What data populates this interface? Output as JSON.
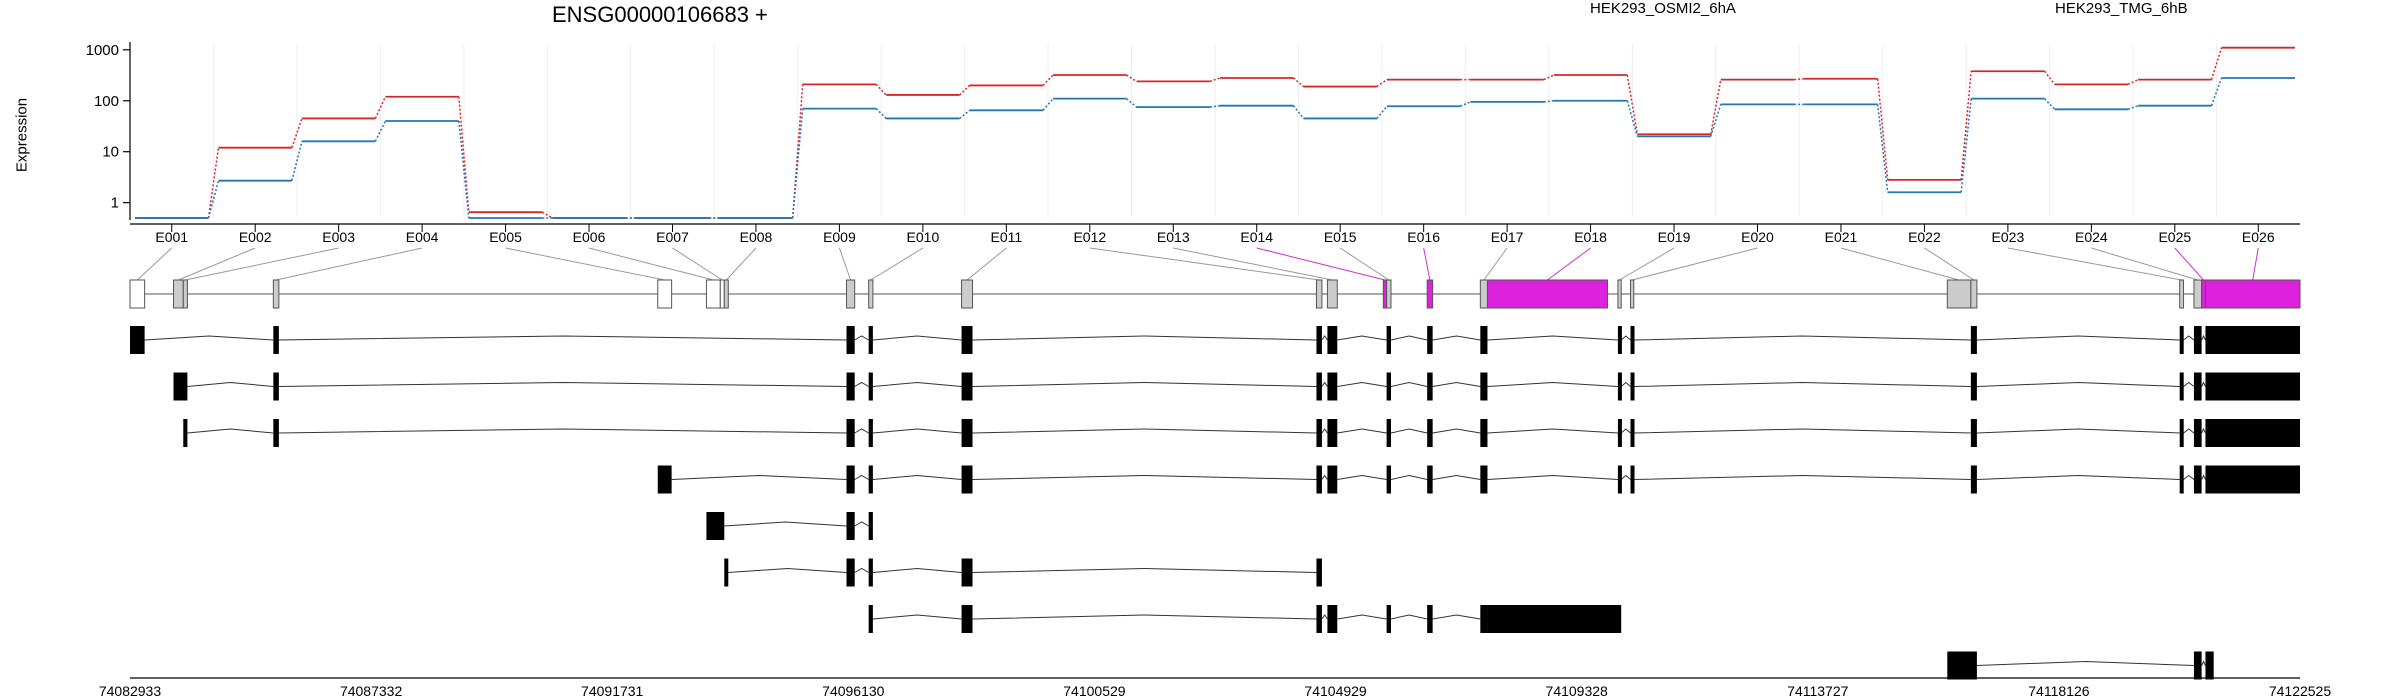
{
  "chart_data": {
    "type": "line",
    "title": "ENSG00000106683 +",
    "ylabel": "Expression",
    "yscale": "log",
    "ylim": [
      0.5,
      1300
    ],
    "yticks": [
      "1",
      "10",
      "100",
      "1000"
    ],
    "ytick_values": [
      1,
      10,
      100,
      1000
    ],
    "legend_placement": "top",
    "series": [
      {
        "name": "HEK293_OSMI2_6hA",
        "color": "#d62728",
        "values": [
          0.5,
          12,
          45,
          120,
          0.65,
          0.5,
          0.5,
          0.5,
          210,
          130,
          200,
          320,
          240,
          280,
          190,
          260,
          260,
          320,
          22,
          260,
          270,
          2.8,
          380,
          210,
          260,
          1100
        ]
      },
      {
        "name": "HEK293_TMG_6hB",
        "color": "#1f77b4",
        "values": [
          0.5,
          2.7,
          16,
          40,
          0.5,
          0.5,
          0.5,
          0.5,
          70,
          45,
          65,
          110,
          75,
          80,
          45,
          78,
          95,
          100,
          20,
          85,
          85,
          1.6,
          110,
          68,
          80,
          280
        ]
      }
    ],
    "exons": [
      {
        "label": "E001",
        "start": 74082933,
        "end": 74083200,
        "color": "#ffffff"
      },
      {
        "label": "E002",
        "start": 74083727,
        "end": 74083905,
        "color": "#cccccc"
      },
      {
        "label": "E003",
        "start": 74083905,
        "end": 74083980,
        "color": "#cccccc"
      },
      {
        "label": "E004",
        "start": 74085548,
        "end": 74085649,
        "color": "#cccccc"
      },
      {
        "label": "E005",
        "start": 74092562,
        "end": 74092815,
        "color": "#ffffff"
      },
      {
        "label": "E006",
        "start": 74093450,
        "end": 74093703,
        "color": "#ffffff"
      },
      {
        "label": "E007",
        "start": 74093703,
        "end": 74093776,
        "color": "#ffffff"
      },
      {
        "label": "E008",
        "start": 74093776,
        "end": 74093849,
        "color": "#cccccc"
      },
      {
        "label": "E009",
        "start": 74096006,
        "end": 74096155,
        "color": "#cccccc"
      },
      {
        "label": "E010",
        "start": 74096410,
        "end": 74096487,
        "color": "#cccccc"
      },
      {
        "label": "E011",
        "start": 74098105,
        "end": 74098305,
        "color": "#cccccc"
      },
      {
        "label": "E012",
        "start": 74104580,
        "end": 74104680,
        "color": "#cccccc"
      },
      {
        "label": "E013",
        "start": 74104780,
        "end": 74104960,
        "color": "#cccccc"
      },
      {
        "label": "E014",
        "start": 74105800,
        "end": 74105860,
        "color": "#dd22dd"
      },
      {
        "label": "E015",
        "start": 74105860,
        "end": 74105940,
        "color": "#cccccc"
      },
      {
        "label": "E016",
        "start": 74106600,
        "end": 74106700,
        "color": "#dd22dd"
      },
      {
        "label": "E017",
        "start": 74107570,
        "end": 74107700,
        "color": "#cccccc"
      },
      {
        "label": "E018",
        "start": 74107700,
        "end": 74109890,
        "color": "#dd22dd"
      },
      {
        "label": "E019",
        "start": 74110080,
        "end": 74110140,
        "color": "#cccccc"
      },
      {
        "label": "E020",
        "start": 74110310,
        "end": 74110370,
        "color": "#cccccc"
      },
      {
        "label": "E021",
        "start": 74116090,
        "end": 74116520,
        "color": "#cccccc"
      },
      {
        "label": "E022",
        "start": 74116520,
        "end": 74116630,
        "color": "#cccccc"
      },
      {
        "label": "E023",
        "start": 74120330,
        "end": 74120400,
        "color": "#cccccc"
      },
      {
        "label": "E024",
        "start": 74120590,
        "end": 74120730,
        "color": "#cccccc"
      },
      {
        "label": "E025",
        "start": 74120730,
        "end": 74120800,
        "color": "#dd22dd"
      },
      {
        "label": "E026",
        "start": 74120800,
        "end": 74122525,
        "color": "#dd22dd"
      }
    ],
    "xlim": [
      74082933,
      74122525
    ],
    "xticks": [
      "74082933",
      "74087332",
      "74091731",
      "74096130",
      "74100529",
      "74104929",
      "74109328",
      "74113727",
      "74118126",
      "74122525"
    ],
    "xtick_values": [
      74082933,
      74087332,
      74091731,
      74096130,
      74100529,
      74104929,
      74109328,
      74113727,
      74118126,
      74122525
    ],
    "transcripts": [
      [
        [
          74082933,
          74083200
        ],
        [
          74085548,
          74085649
        ],
        [
          74096006,
          74096155
        ],
        [
          74096410,
          74096487
        ],
        [
          74098105,
          74098305
        ],
        [
          74104580,
          74104680
        ],
        [
          74104780,
          74104960
        ],
        [
          74105860,
          74105940
        ],
        [
          74106600,
          74106700
        ],
        [
          74107570,
          74107700
        ],
        [
          74110080,
          74110140
        ],
        [
          74110310,
          74110370
        ],
        [
          74116520,
          74116630
        ],
        [
          74120330,
          74120400
        ],
        [
          74120590,
          74120730
        ],
        [
          74120800,
          74122525
        ]
      ],
      [
        [
          74083727,
          74083980
        ],
        [
          74085548,
          74085649
        ],
        [
          74096006,
          74096155
        ],
        [
          74096410,
          74096487
        ],
        [
          74098105,
          74098305
        ],
        [
          74104580,
          74104680
        ],
        [
          74104780,
          74104960
        ],
        [
          74105860,
          74105940
        ],
        [
          74106600,
          74106700
        ],
        [
          74107570,
          74107700
        ],
        [
          74110080,
          74110140
        ],
        [
          74110310,
          74110370
        ],
        [
          74116520,
          74116630
        ],
        [
          74120330,
          74120400
        ],
        [
          74120590,
          74120730
        ],
        [
          74120800,
          74122525
        ]
      ],
      [
        [
          74083905,
          74083980
        ],
        [
          74085548,
          74085649
        ],
        [
          74096006,
          74096155
        ],
        [
          74096410,
          74096487
        ],
        [
          74098105,
          74098305
        ],
        [
          74104580,
          74104680
        ],
        [
          74104780,
          74104960
        ],
        [
          74105860,
          74105940
        ],
        [
          74106600,
          74106700
        ],
        [
          74107570,
          74107700
        ],
        [
          74110080,
          74110140
        ],
        [
          74110310,
          74110370
        ],
        [
          74116520,
          74116630
        ],
        [
          74120330,
          74120400
        ],
        [
          74120590,
          74120730
        ],
        [
          74120800,
          74122525
        ]
      ],
      [
        [
          74092562,
          74092815
        ],
        [
          74096006,
          74096155
        ],
        [
          74096410,
          74096487
        ],
        [
          74098105,
          74098305
        ],
        [
          74104580,
          74104680
        ],
        [
          74104780,
          74104960
        ],
        [
          74105860,
          74105940
        ],
        [
          74106600,
          74106700
        ],
        [
          74107570,
          74107700
        ],
        [
          74110080,
          74110140
        ],
        [
          74110310,
          74110370
        ],
        [
          74116520,
          74116630
        ],
        [
          74120330,
          74120400
        ],
        [
          74120590,
          74120730
        ],
        [
          74120800,
          74122525
        ]
      ],
      [
        [
          74093450,
          74093776
        ],
        [
          74096006,
          74096155
        ],
        [
          74096410,
          74096487
        ]
      ],
      [
        [
          74093776,
          74093849
        ],
        [
          74096006,
          74096155
        ],
        [
          74096410,
          74096487
        ],
        [
          74098105,
          74098305
        ],
        [
          74104580,
          74104680
        ]
      ],
      [
        [
          74096410,
          74096487
        ],
        [
          74098105,
          74098305
        ],
        [
          74104580,
          74104680
        ],
        [
          74104780,
          74104960
        ],
        [
          74105860,
          74105940
        ],
        [
          74106600,
          74106700
        ],
        [
          74107570,
          74107700
        ],
        [
          74107700,
          74110140
        ]
      ],
      [
        [
          74116090,
          74116630
        ],
        [
          74120590,
          74120730
        ],
        [
          74120800,
          74120950
        ]
      ]
    ]
  }
}
